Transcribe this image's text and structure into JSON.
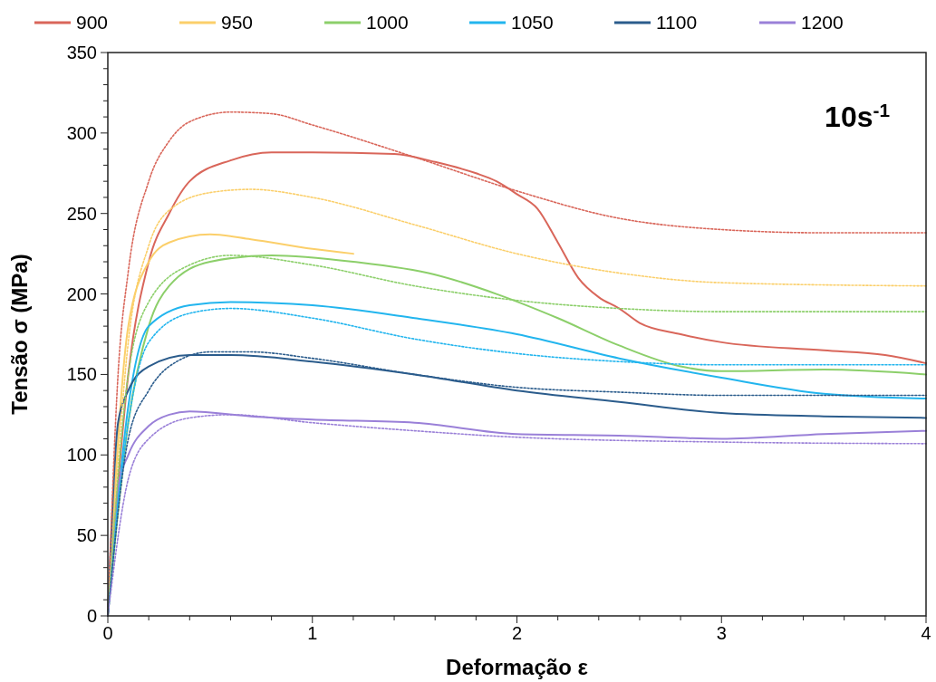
{
  "chart_data": {
    "type": "line",
    "xlabel": "Deformação ε",
    "ylabel": "Tensão σ (MPa)",
    "annotations": [
      "10s$^{-1}$"
    ],
    "xlim": [
      0,
      4
    ],
    "ylim": [
      0,
      350
    ],
    "xticks": [
      0,
      {
        "value": 0.2,
        "label": null
      },
      {
        "value": 0.4,
        "label": null
      },
      {
        "value": 0.6,
        "label": null
      },
      {
        "value": 0.8,
        "label": null
      },
      1,
      {
        "value": 1.2,
        "label": null
      },
      {
        "value": 1.4,
        "label": null
      },
      {
        "value": 1.6,
        "label": null
      },
      {
        "value": 1.8,
        "label": null
      },
      2,
      {
        "value": 2.2,
        "label": null
      },
      {
        "value": 2.4,
        "label": null
      },
      {
        "value": 2.6,
        "label": null
      },
      {
        "value": 2.8,
        "label": null
      },
      3,
      {
        "value": 3.2,
        "label": null
      },
      {
        "value": 3.4,
        "label": null
      },
      {
        "value": 3.6,
        "label": null
      },
      {
        "value": 3.8,
        "label": null
      },
      4
    ],
    "yticks": [
      0,
      {
        "value": 10,
        "label": null
      },
      {
        "value": 20,
        "label": null
      },
      {
        "value": 30,
        "label": null
      },
      {
        "value": 40,
        "label": null
      },
      50,
      {
        "value": 60,
        "label": null
      },
      {
        "value": 70,
        "label": null
      },
      {
        "value": 80,
        "label": null
      },
      {
        "value": 90,
        "label": null
      },
      100,
      {
        "value": 110,
        "label": null
      },
      {
        "value": 120,
        "label": null
      },
      {
        "value": 130,
        "label": null
      },
      {
        "value": 140,
        "label": null
      },
      150,
      {
        "value": 160,
        "label": null
      },
      {
        "value": 170,
        "label": null
      },
      {
        "value": 180,
        "label": null
      },
      {
        "value": 190,
        "label": null
      },
      200,
      {
        "value": 210,
        "label": null
      },
      {
        "value": 220,
        "label": null
      },
      {
        "value": 230,
        "label": null
      },
      {
        "value": 240,
        "label": null
      },
      250,
      {
        "value": 260,
        "label": null
      },
      {
        "value": 270,
        "label": null
      },
      {
        "value": 280,
        "label": null
      },
      {
        "value": 290,
        "label": null
      },
      300,
      {
        "value": 310,
        "label": null
      },
      {
        "value": 320,
        "label": null
      },
      {
        "value": 330,
        "label": null
      },
      {
        "value": 340,
        "label": null
      },
      350
    ],
    "grid": false,
    "legend": "top",
    "marker": "none",
    "line_style": "solid",
    "series": [
      {
        "name": "900",
        "color": "#d9665a",
        "x": [
          0,
          0.1,
          0.2,
          0.3,
          0.4,
          0.6,
          0.8,
          1.0,
          1.4,
          1.6,
          1.8,
          1.9,
          2.0,
          2.1,
          2.2,
          2.3,
          2.4,
          2.5,
          2.6,
          2.8,
          3.0,
          3.5,
          3.8,
          4.0
        ],
        "values": [
          0,
          150,
          220,
          250,
          270,
          283,
          288,
          288,
          287,
          282,
          275,
          270,
          262,
          253,
          232,
          210,
          198,
          191,
          182,
          175,
          170,
          165,
          162,
          157
        ]
      },
      {
        "name": "950",
        "color": "#fbcf6a",
        "x": [
          0,
          0.1,
          0.2,
          0.3,
          0.5,
          0.7,
          1.0,
          1.2
        ],
        "values": [
          0,
          180,
          220,
          232,
          237,
          234,
          228,
          225
        ]
      },
      {
        "name": "1000",
        "color": "#8ccf6a",
        "x": [
          0,
          0.1,
          0.2,
          0.3,
          0.5,
          0.8,
          1.2,
          1.6,
          1.9,
          2.2,
          2.5,
          2.8,
          3.0,
          3.5,
          4.0
        ],
        "values": [
          0,
          120,
          180,
          205,
          220,
          224,
          220,
          212,
          200,
          185,
          168,
          155,
          152,
          153,
          150
        ]
      },
      {
        "name": "1050",
        "color": "#22b5ee",
        "x": [
          0,
          0.1,
          0.2,
          0.4,
          0.6,
          1.0,
          1.5,
          2.0,
          2.5,
          3.0,
          3.5,
          4.0
        ],
        "values": [
          0,
          130,
          180,
          193,
          195,
          193,
          185,
          175,
          160,
          148,
          138,
          135
        ]
      },
      {
        "name": "1100",
        "color": "#2b5c8c",
        "x": [
          0,
          0.05,
          0.1,
          0.2,
          0.4,
          0.6,
          1.0,
          1.5,
          2.0,
          2.5,
          3.0,
          3.5,
          4.0
        ],
        "values": [
          0,
          120,
          140,
          155,
          162,
          162,
          158,
          150,
          140,
          133,
          126,
          124,
          123
        ]
      },
      {
        "name": "1200",
        "color": "#9a80d8",
        "x": [
          0,
          0.05,
          0.1,
          0.2,
          0.3,
          0.4,
          0.7,
          1.0,
          1.5,
          2.0,
          2.5,
          3.0,
          3.5,
          4.0
        ],
        "values": [
          0,
          80,
          100,
          118,
          125,
          127,
          124,
          122,
          120,
          113,
          112,
          110,
          113,
          115
        ]
      },
      {
        "color": "#d9665a",
        "line_style": "dotted",
        "x": [
          0,
          0.05,
          0.1,
          0.2,
          0.3,
          0.4,
          0.6,
          0.8,
          1.0,
          1.5,
          2.0,
          2.5,
          3.0,
          3.5,
          4.0
        ],
        "values": [
          0,
          150,
          214,
          270,
          295,
          307,
          313,
          312,
          305,
          285,
          264,
          247,
          240,
          238,
          238
        ]
      },
      {
        "color": "#fbcf6a",
        "line_style": "dotted",
        "x": [
          0,
          0.1,
          0.2,
          0.3,
          0.5,
          0.7,
          1.0,
          1.5,
          2.0,
          2.5,
          3.0,
          4.0
        ],
        "values": [
          0,
          170,
          230,
          252,
          263,
          265,
          260,
          243,
          225,
          213,
          207,
          205
        ]
      },
      {
        "color": "#8ccf6a",
        "line_style": "dotted",
        "x": [
          0,
          0.1,
          0.2,
          0.4,
          0.6,
          1.0,
          1.5,
          2.0,
          2.5,
          3.0,
          4.0
        ],
        "values": [
          0,
          150,
          195,
          218,
          224,
          218,
          205,
          196,
          191,
          189,
          189
        ]
      },
      {
        "color": "#22b5ee",
        "line_style": "dotted",
        "x": [
          0,
          0.1,
          0.2,
          0.4,
          0.6,
          1.0,
          1.5,
          2.0,
          2.5,
          3.0,
          4.0
        ],
        "values": [
          0,
          120,
          170,
          188,
          191,
          185,
          172,
          163,
          158,
          156,
          156
        ]
      },
      {
        "color": "#2b5c8c",
        "line_style": "dotted",
        "x": [
          0,
          0.1,
          0.2,
          0.3,
          0.5,
          0.7,
          1.0,
          1.5,
          2.0,
          2.5,
          3.0,
          4.0
        ],
        "values": [
          0,
          110,
          140,
          155,
          164,
          164,
          160,
          150,
          142,
          139,
          137,
          137
        ]
      },
      {
        "color": "#9a80d8",
        "line_style": "dotted",
        "x": [
          0,
          0.1,
          0.2,
          0.4,
          0.6,
          1.0,
          1.5,
          2.0,
          3.0,
          4.0
        ],
        "values": [
          0,
          85,
          110,
          123,
          125,
          120,
          115,
          111,
          108,
          107
        ]
      }
    ]
  }
}
